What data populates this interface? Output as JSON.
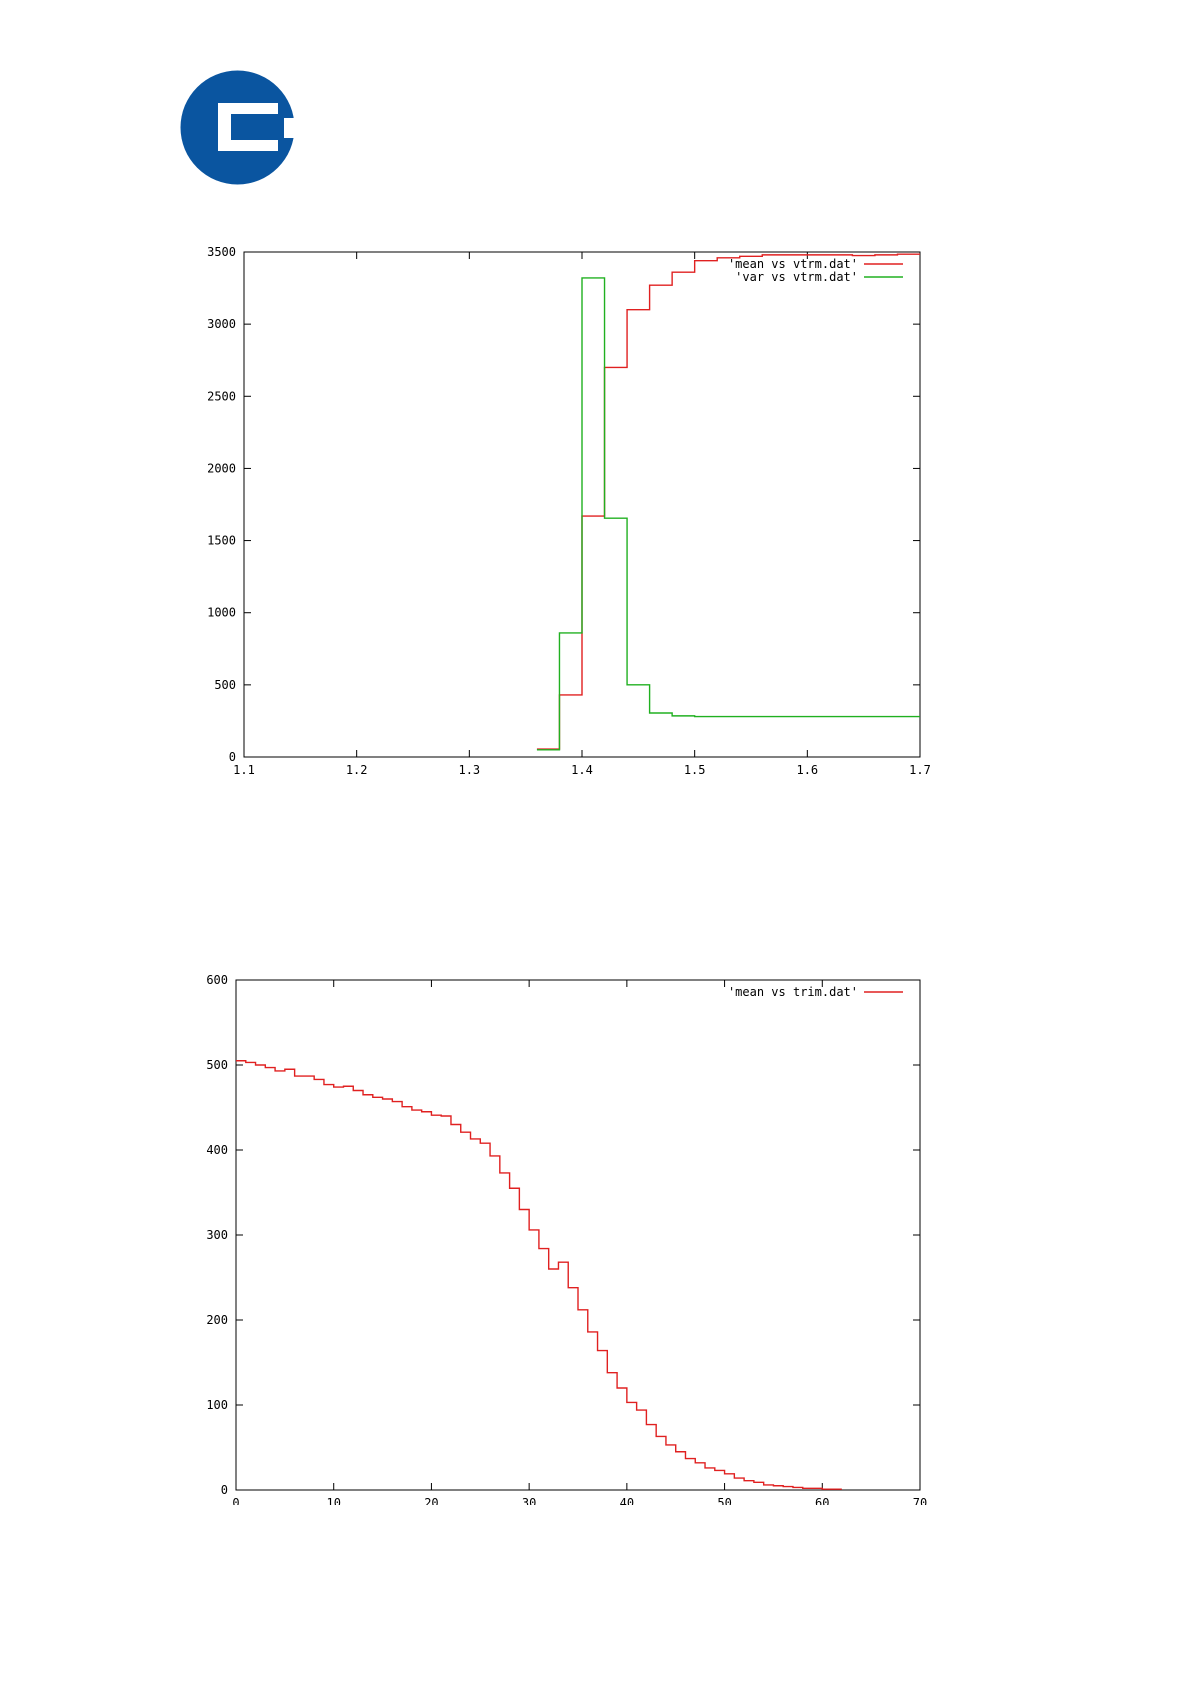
{
  "logo": {
    "color": "#0a55a0"
  },
  "chart_data": [
    {
      "type": "line",
      "step": true,
      "x": [
        1.36,
        1.38,
        1.4,
        1.42,
        1.44,
        1.46,
        1.48,
        1.5,
        1.52,
        1.54,
        1.56,
        1.58,
        1.6,
        1.62,
        1.64,
        1.66,
        1.68,
        1.7
      ],
      "series": [
        {
          "name": "'mean vs vtrm.dat'",
          "color": "#e02020",
          "values": [
            55,
            430,
            1670,
            2700,
            3100,
            3270,
            3360,
            3440,
            3460,
            3470,
            3480,
            3480,
            3480,
            3480,
            3475,
            3480,
            3485,
            3485
          ]
        },
        {
          "name": "'var vs vtrm.dat'",
          "color": "#20b020",
          "values": [
            50,
            860,
            3320,
            1655,
            500,
            305,
            285,
            280,
            280,
            280,
            280,
            280,
            280,
            280,
            280,
            280,
            280,
            280
          ]
        }
      ],
      "xlim": [
        1.1,
        1.7
      ],
      "ylim": [
        0,
        3500
      ],
      "xticks": [
        "1.1",
        "1.2",
        "1.3",
        "1.4",
        "1.5",
        "1.6",
        "1.7"
      ],
      "yticks": [
        "0",
        "500",
        "1000",
        "1500",
        "2000",
        "2500",
        "3000",
        "3500"
      ],
      "legend": "top-right"
    },
    {
      "type": "line",
      "step": true,
      "x": [
        0,
        1,
        2,
        3,
        4,
        5,
        6,
        7,
        8,
        9,
        10,
        11,
        12,
        13,
        14,
        15,
        16,
        17,
        18,
        19,
        20,
        21,
        22,
        23,
        24,
        25,
        26,
        27,
        28,
        29,
        30,
        31,
        32,
        33,
        34,
        35,
        36,
        37,
        38,
        39,
        40,
        41,
        42,
        43,
        44,
        45,
        46,
        47,
        48,
        49,
        50,
        51,
        52,
        53,
        54,
        55,
        56,
        57,
        58,
        59,
        60,
        61
      ],
      "series": [
        {
          "name": "'mean vs trim.dat'",
          "color": "#e02020",
          "values": [
            505,
            503,
            500,
            497,
            493,
            495,
            487,
            487,
            483,
            477,
            474,
            475,
            470,
            465,
            462,
            460,
            457,
            451,
            447,
            445,
            441,
            440,
            430,
            421,
            413,
            408,
            393,
            373,
            355,
            330,
            306,
            284,
            260,
            268,
            238,
            212,
            186,
            164,
            138,
            120,
            103,
            94,
            77,
            63,
            53,
            45,
            37,
            32,
            26,
            23,
            19,
            14,
            11,
            9,
            6,
            5,
            4,
            3,
            2,
            2,
            1,
            1
          ]
        }
      ],
      "xlim": [
        0,
        70
      ],
      "ylim": [
        0,
        600
      ],
      "xticks": [
        "0",
        "10",
        "20",
        "30",
        "40",
        "50",
        "60",
        "70"
      ],
      "yticks": [
        "0",
        "100",
        "200",
        "300",
        "400",
        "500",
        "600"
      ],
      "legend": "top-right"
    }
  ]
}
